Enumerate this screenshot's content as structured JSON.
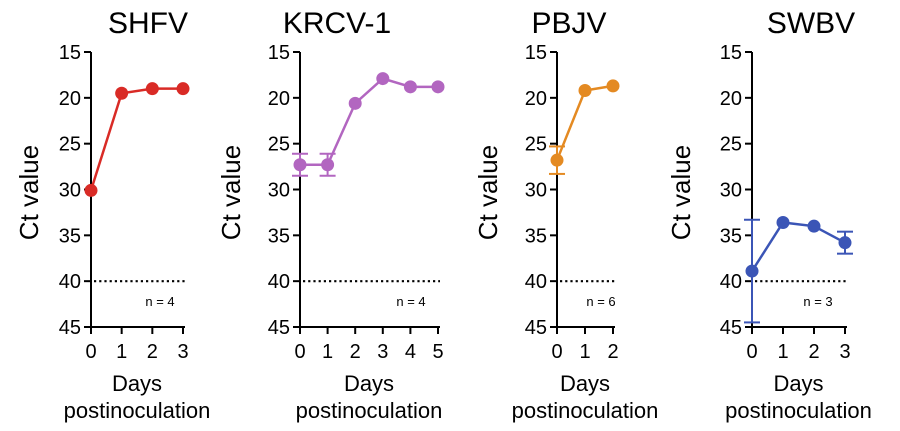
{
  "chart_data": [
    {
      "type": "line",
      "title": "SHFV",
      "xlabel": "Days postinoculation",
      "ylabel": "Ct value",
      "x": [
        0,
        1,
        2,
        3
      ],
      "y": [
        30.1,
        19.5,
        19.0,
        19.0
      ],
      "error": [
        0,
        0,
        0,
        0
      ],
      "xlim": [
        0,
        3
      ],
      "ylim": [
        45,
        15
      ],
      "yticks": [
        15,
        20,
        25,
        30,
        35,
        40,
        45
      ],
      "y_inverted": true,
      "threshold": 40,
      "color": "#d92b26",
      "annotation": "n = 4"
    },
    {
      "type": "line",
      "title": "KRCV-1",
      "xlabel": "Days postinoculation",
      "ylabel": "Ct value",
      "x": [
        0,
        1,
        2,
        3,
        4,
        5
      ],
      "y": [
        27.3,
        27.3,
        20.6,
        17.9,
        18.8,
        18.8
      ],
      "error": [
        1.2,
        1.2,
        0,
        0,
        0,
        0
      ],
      "xlim": [
        0,
        5
      ],
      "ylim": [
        45,
        15
      ],
      "yticks": [
        15,
        20,
        25,
        30,
        35,
        40,
        45
      ],
      "y_inverted": true,
      "threshold": 40,
      "color": "#b266c0",
      "annotation": "n = 4"
    },
    {
      "type": "line",
      "title": "PBJV",
      "xlabel": "Days postinoculation",
      "ylabel": "Ct value",
      "x": [
        0,
        1,
        2
      ],
      "y": [
        26.8,
        19.2,
        18.7
      ],
      "error": [
        1.5,
        0,
        0
      ],
      "xlim": [
        0,
        2
      ],
      "ylim": [
        45,
        15
      ],
      "yticks": [
        15,
        20,
        25,
        30,
        35,
        40,
        45
      ],
      "y_inverted": true,
      "threshold": 40,
      "color": "#e48a22",
      "annotation": "n = 6"
    },
    {
      "type": "line",
      "title": "SWBV",
      "xlabel": "Days postinoculation",
      "ylabel": "Ct value",
      "x": [
        0,
        1,
        2,
        3
      ],
      "y": [
        38.9,
        33.6,
        34.0,
        35.8
      ],
      "error": [
        5.6,
        0,
        0,
        1.2
      ],
      "xlim": [
        0,
        3
      ],
      "ylim": [
        45,
        15
      ],
      "yticks": [
        15,
        20,
        25,
        30,
        35,
        40,
        45
      ],
      "y_inverted": true,
      "threshold": 40,
      "color": "#3b55b6",
      "annotation": "n = 3"
    }
  ],
  "xlabel_lines": [
    "Days",
    "postinoculation"
  ]
}
